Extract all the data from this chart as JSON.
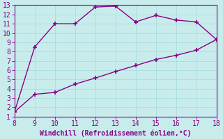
{
  "upper_x": [
    8,
    9,
    10,
    11,
    12,
    13,
    14,
    15,
    16,
    17,
    18
  ],
  "upper_y": [
    1.5,
    8.5,
    11.0,
    11.0,
    12.8,
    12.9,
    11.2,
    11.9,
    11.4,
    11.2,
    9.3
  ],
  "lower_x": [
    8,
    9,
    10,
    11,
    12,
    13,
    14,
    15,
    16,
    17,
    18
  ],
  "lower_y": [
    1.5,
    3.4,
    3.6,
    4.5,
    5.15,
    5.85,
    6.5,
    7.15,
    7.6,
    8.15,
    9.3
  ],
  "line_color": "#880088",
  "marker": "+",
  "marker_size": 5,
  "marker_lw": 1.2,
  "line_width": 1.0,
  "xlim": [
    8,
    18
  ],
  "ylim": [
    1,
    13
  ],
  "xticks": [
    8,
    9,
    10,
    11,
    12,
    13,
    14,
    15,
    16,
    17,
    18
  ],
  "yticks": [
    1,
    2,
    3,
    4,
    5,
    6,
    7,
    8,
    9,
    10,
    11,
    12,
    13
  ],
  "xlabel": "Windchill (Refroidissement éolien,°C)",
  "bg_color": "#c8ecec",
  "grid_color": "#aadddd",
  "tick_color": "#880088",
  "label_color": "#880088",
  "tick_fontsize": 7,
  "xlabel_fontsize": 7
}
